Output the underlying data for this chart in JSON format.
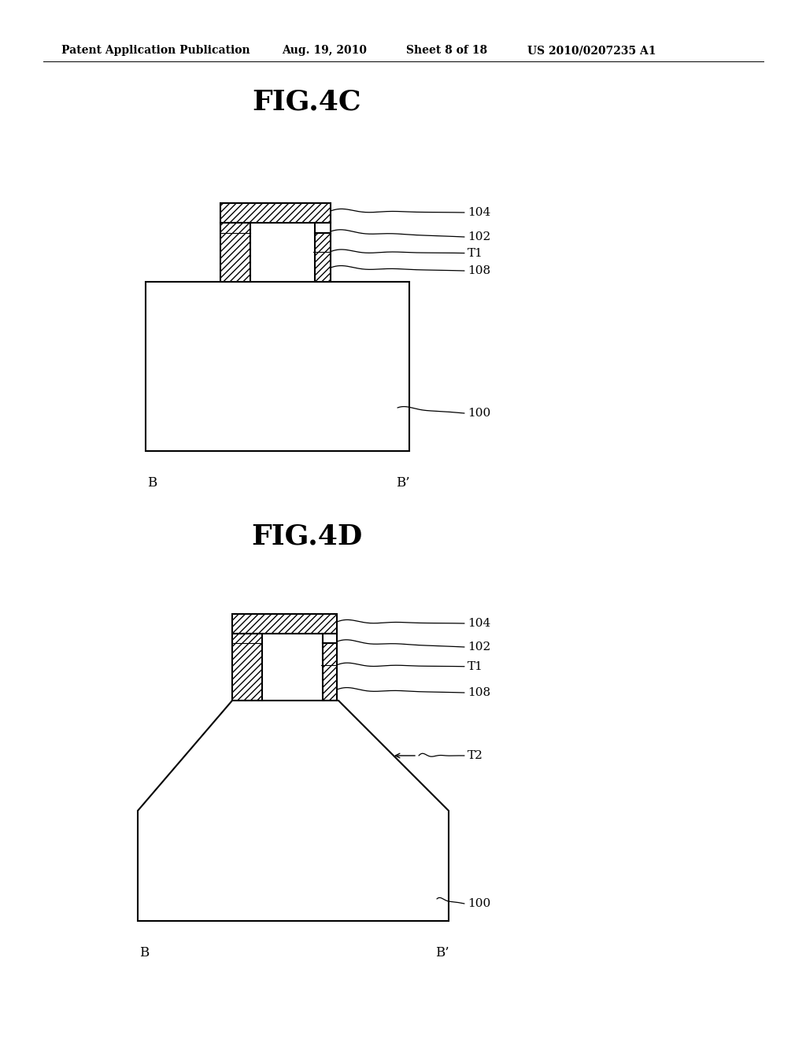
{
  "bg_color": "#ffffff",
  "line_color": "#000000",
  "header_text": "Patent Application Publication",
  "header_date": "Aug. 19, 2010",
  "header_sheet": "Sheet 8 of 18",
  "header_patent": "US 2010/0207235 A1",
  "fig4c_title": "FIG.4C",
  "fig4d_title": "FIG.4D",
  "label_104": "104",
  "label_102": "102",
  "label_T1": "T1",
  "label_108": "108",
  "label_100": "100",
  "label_T2": "T2",
  "label_B": "B",
  "label_Bp": "B’",
  "struct_lw": 1.5,
  "leader_lw": 0.9,
  "hatch": "////"
}
